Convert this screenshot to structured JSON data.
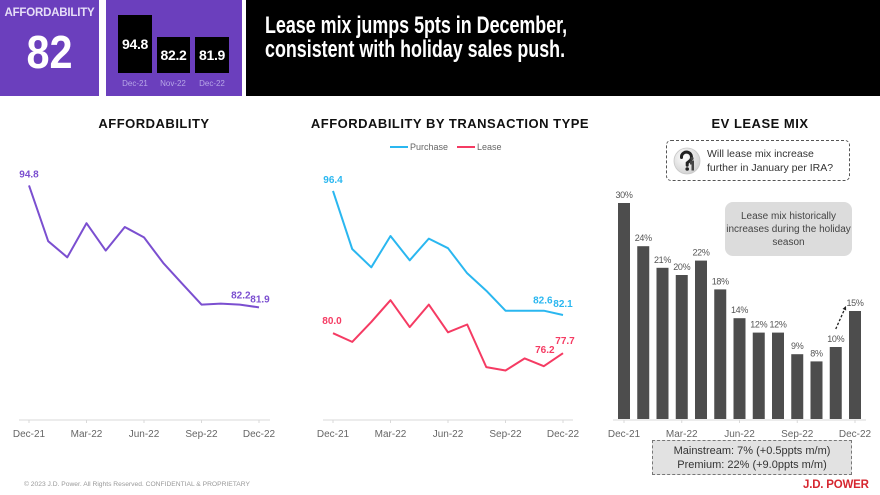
{
  "header": {
    "affordability_label": "AFFORDABILITY",
    "affordability_value": "82",
    "snapshots": [
      {
        "value": "94.8",
        "period": "Dec-21"
      },
      {
        "value": "82.2",
        "period": "Nov-22"
      },
      {
        "value": "81.9",
        "period": "Dec-22"
      }
    ],
    "headline_line1": "Lease mix jumps 5pts in December,",
    "headline_line2": "consistent with holiday sales push."
  },
  "footer": {
    "copyright": "© 2023 J.D. Power. All Rights Reserved. CONFIDENTIAL & PROPRIETARY",
    "logo_text": "J.D. POWER"
  },
  "colors": {
    "brand_purple": "#6b3fbd",
    "affordability_line": "#7b4fd0",
    "purchase_line": "#2ab7f0",
    "lease_line": "#f53b63",
    "bar_fill": "#4d4d4d",
    "logo_red": "#d6262f"
  },
  "chart_data": [
    {
      "type": "line",
      "title": "AFFORDABILITY",
      "x_tick_labels": [
        "Dec-21",
        "Mar-22",
        "Jun-22",
        "Sep-22",
        "Dec-22"
      ],
      "x_tick_index": [
        0,
        3,
        6,
        9,
        12
      ],
      "ylim": [
        70,
        96
      ],
      "grid": false,
      "legend": "none",
      "series": [
        {
          "values": [
            94.8,
            88.9,
            87.2,
            90.8,
            87.9,
            90.4,
            89.3,
            86.6,
            84.4,
            82.2,
            82.3,
            82.2,
            81.9
          ],
          "color": "#7b4fd0",
          "labels": [
            {
              "index": 0,
              "text": "94.8"
            },
            {
              "index": 11,
              "text": "82.2"
            },
            {
              "index": 12,
              "text": "81.9"
            }
          ]
        }
      ]
    },
    {
      "type": "line",
      "title": "AFFORDABILITY BY TRANSACTION TYPE",
      "x_tick_labels": [
        "Dec-21",
        "Mar-22",
        "Jun-22",
        "Sep-22",
        "Dec-22"
      ],
      "x_tick_index": [
        0,
        3,
        6,
        9,
        12
      ],
      "ylim": [
        70,
        98
      ],
      "grid": false,
      "legend": "top-center",
      "series": [
        {
          "name": "Purchase",
          "color": "#2ab7f0",
          "values": [
            96.4,
            89.7,
            87.6,
            91.2,
            88.4,
            90.9,
            89.8,
            86.9,
            84.9,
            82.6,
            82.6,
            82.6,
            82.1
          ],
          "labels": [
            {
              "index": 0,
              "text": "96.4"
            },
            {
              "index": 11,
              "text": "82.6"
            },
            {
              "index": 12,
              "text": "82.1"
            }
          ]
        },
        {
          "name": "Lease",
          "color": "#f53b63",
          "values": [
            80.0,
            79.0,
            81.3,
            83.8,
            80.7,
            83.3,
            80.1,
            81.0,
            76.1,
            75.7,
            77.1,
            76.2,
            77.7
          ],
          "labels": [
            {
              "index": 0,
              "text": "80.0"
            },
            {
              "index": 11,
              "text": "76.2"
            },
            {
              "index": 12,
              "text": "77.7"
            }
          ]
        }
      ]
    },
    {
      "type": "bar",
      "title": "EV LEASE MIX",
      "x_tick_labels": [
        "Dec-21",
        "Mar-22",
        "Jun-22",
        "Sep-22",
        "Dec-22"
      ],
      "x_tick_index": [
        0,
        3,
        6,
        9,
        12
      ],
      "ylim": [
        0,
        30
      ],
      "grid": false,
      "legend": "none",
      "series": [
        {
          "color": "#4d4d4d",
          "values": [
            30,
            24,
            21,
            20,
            22,
            18,
            14,
            12,
            12,
            9,
            8,
            10,
            15
          ],
          "labels": [
            "30%",
            "24%",
            "21%",
            "20%",
            "22%",
            "18%",
            "14%",
            "12%",
            "12%",
            "9%",
            "8%",
            "10%",
            "15%"
          ]
        }
      ],
      "annotations": {
        "question_line1": "Will lease mix increase",
        "question_line2": "further in January per IRA?",
        "callout": "Lease mix historically increases during the holiday season",
        "summary_line1": "Mainstream: 7% (+0.5ppts m/m)",
        "summary_line2": "Premium: 22% (+9.0ppts m/m)"
      }
    }
  ]
}
